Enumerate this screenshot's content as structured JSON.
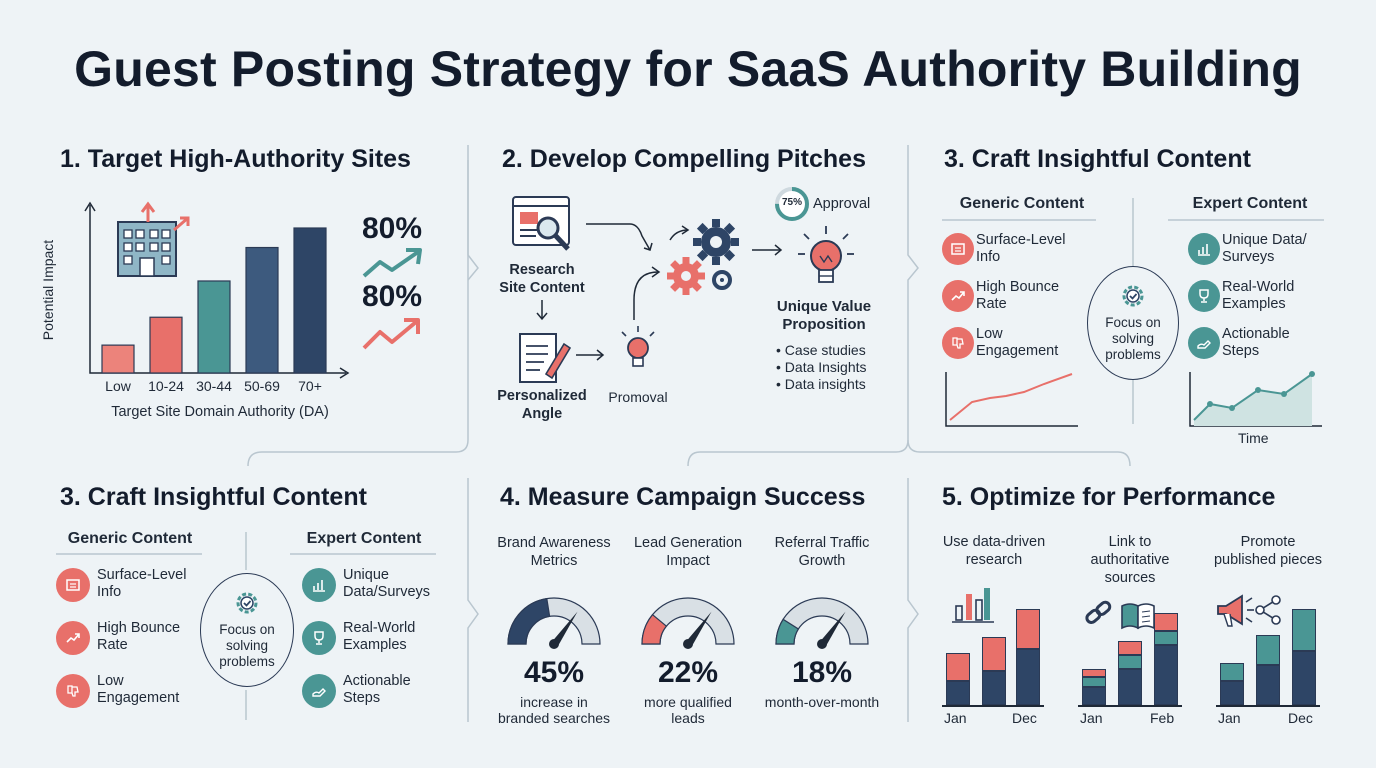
{
  "title": "Guest Posting Strategy for SaaS Authority Building",
  "colors": {
    "navy": "#2e4566",
    "teal": "#4a9694",
    "coral": "#e8706a",
    "line": "#b9c6cf"
  },
  "panel1": {
    "title": "1. Target High-Authority Sites",
    "chart_data": {
      "type": "bar",
      "categories": [
        "Low",
        "10-24",
        "30-44",
        "50-69",
        "70+"
      ],
      "values": [
        1,
        2,
        3.3,
        4.5,
        5.2
      ],
      "xlabel": "Target Site Domain Authority (DA)",
      "ylabel": "Potential Impact"
    },
    "stat1": "80%",
    "stat2": "80%"
  },
  "panel2": {
    "title": "2. Develop Compelling Pitches",
    "research_label": [
      "Research",
      "Site Content"
    ],
    "angle_label": [
      "Personalized",
      "Angle"
    ],
    "promoval": "Promoval",
    "approval_pct": "75%",
    "approval_label": "Approval",
    "uvp_label": [
      "Unique Value",
      "Proposition"
    ],
    "bullets": [
      "• Case studies",
      "• Data Insights",
      "• Data insights"
    ]
  },
  "panel3": {
    "title": "3. Craft Insightful Content",
    "generic_head": "Generic Content",
    "expert_head": "Expert Content",
    "generic": [
      [
        "Surface-Level",
        "Info"
      ],
      [
        "High Bounce",
        "Rate"
      ],
      [
        "Low",
        "Engagement"
      ]
    ],
    "expert": [
      [
        "Unique Data/",
        "Surveys"
      ],
      [
        "Real-World",
        "Examples"
      ],
      [
        "Actionable",
        "Steps"
      ]
    ],
    "focus": [
      "Focus on",
      "solving",
      "problems"
    ],
    "time_label": "Time"
  },
  "panel4": {
    "title": "3. Craft Insightful Content",
    "generic_head": "Generic Content",
    "expert_head": "Expert Content",
    "generic": [
      [
        "Surface-Level",
        "Info"
      ],
      [
        "High Bounce",
        "Rate"
      ],
      [
        "Low",
        "Engagement"
      ]
    ],
    "expert": [
      [
        "Unique",
        "Data/Surveys"
      ],
      [
        "Real-World",
        "Examples"
      ],
      [
        "Actionable",
        "Steps"
      ]
    ],
    "focus": [
      "Focus on",
      "solving",
      "problems"
    ]
  },
  "panel5": {
    "title": "4. Measure Campaign Success",
    "gauges": [
      {
        "head": [
          "Brand Awareness",
          "Metrics"
        ],
        "value": "45%",
        "sub": [
          "increase in",
          "branded searches"
        ],
        "fraction": 0.45
      },
      {
        "head": [
          "Lead Generation",
          "Impact"
        ],
        "value": "22%",
        "sub": [
          "more qualified",
          "leads"
        ],
        "fraction": 0.22
      },
      {
        "head": [
          "Referral Traffic",
          "Growth"
        ],
        "value": "18%",
        "sub": [
          "month-over-month"
        ],
        "fraction": 0.18
      }
    ]
  },
  "panel6": {
    "title": "5. Optimize for Performance",
    "cols": [
      {
        "head": [
          "Use data-driven",
          "research"
        ],
        "x_start": "Jan",
        "x_end": "Dec"
      },
      {
        "head": [
          "Link to",
          "authoritative",
          "sources"
        ],
        "x_start": "Jan",
        "x_end": "Feb"
      },
      {
        "head": [
          "Promote",
          "published pieces"
        ],
        "x_start": "Jan",
        "x_end": "Dec"
      }
    ]
  }
}
